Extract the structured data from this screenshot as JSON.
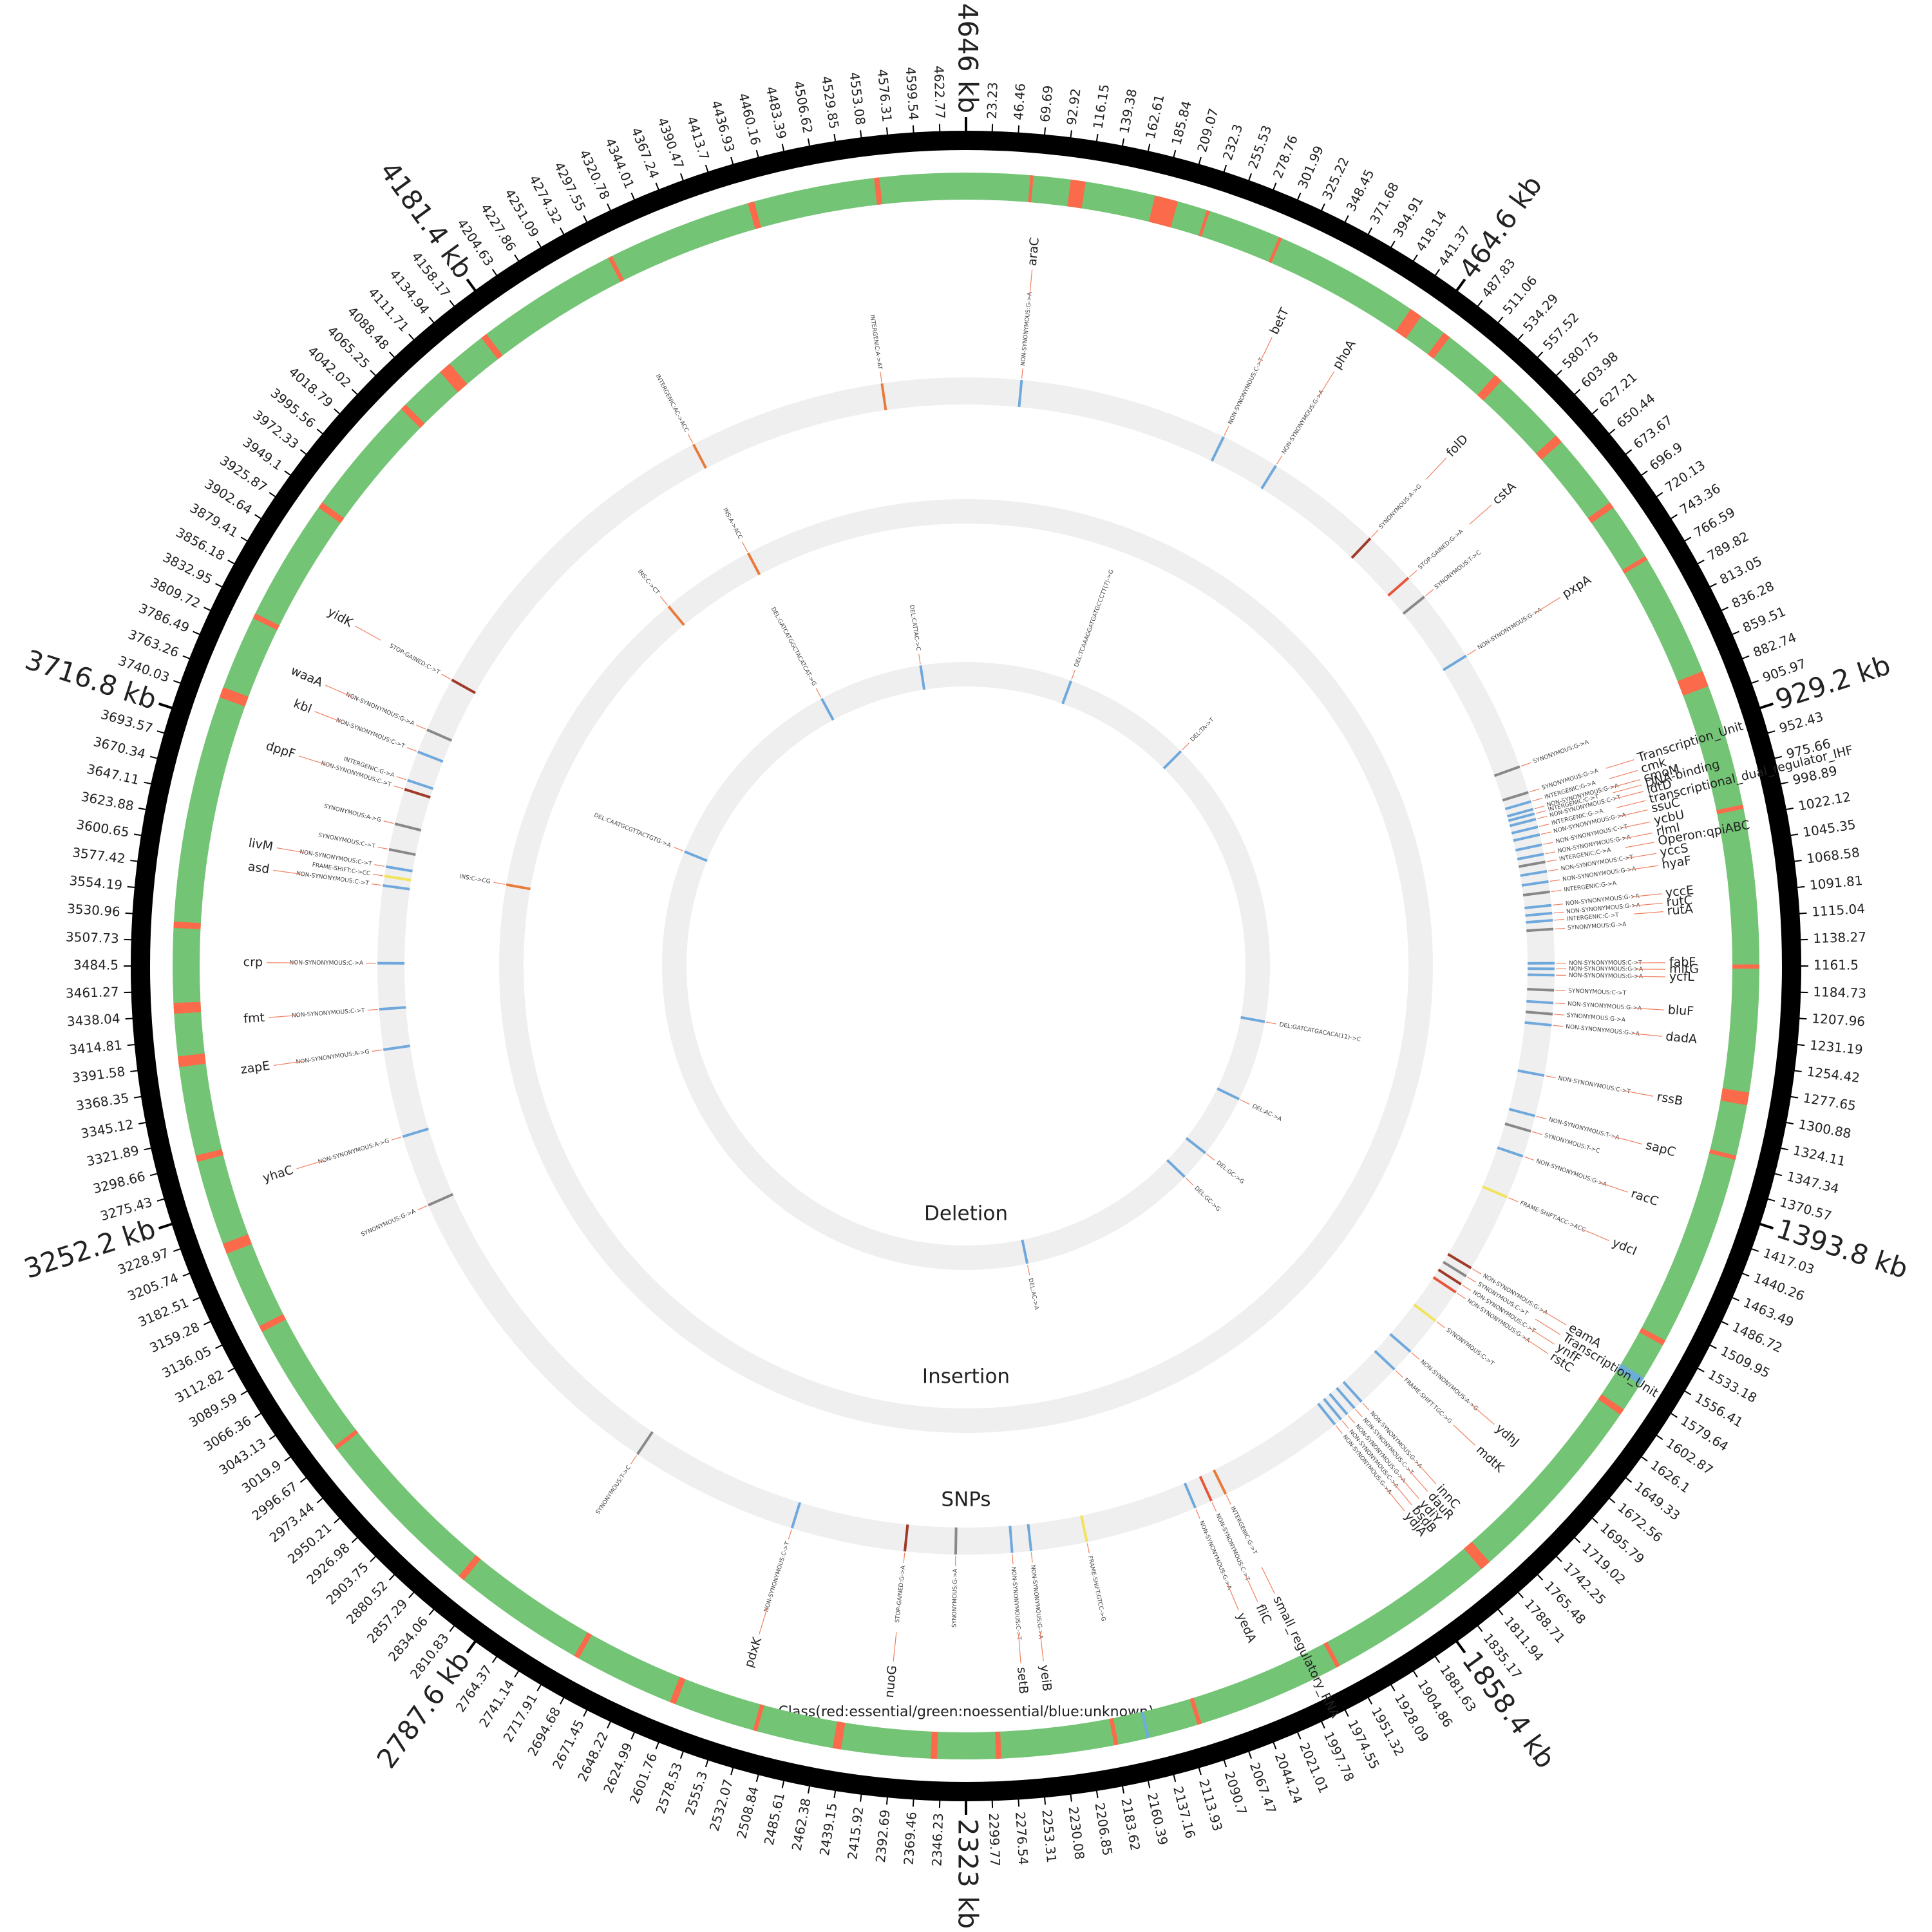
{
  "chart_data": {
    "type": "circos",
    "xlim": [
      0,
      4646
    ],
    "xticks": [
      23.23,
      46.46,
      69.69,
      92.92,
      116.15,
      139.38,
      162.61,
      185.84,
      209.07,
      232.3,
      255.53,
      278.76,
      301.99,
      325.22,
      348.45,
      371.68,
      394.91,
      418.14,
      441.37,
      {
        "value": 464.6,
        "label": "464.6 kb"
      },
      487.83,
      511.06,
      534.29,
      557.52,
      580.75,
      603.98,
      627.21,
      650.44,
      673.67,
      696.9,
      720.13,
      743.36,
      766.59,
      789.82,
      813.05,
      836.28,
      859.51,
      882.74,
      905.97,
      {
        "value": 929.2,
        "label": "929.2 kb"
      },
      952.43,
      975.66,
      998.89,
      1022.12,
      1045.35,
      1068.58,
      1091.81,
      1115.04,
      1138.27,
      1161.5,
      1184.73,
      1207.96,
      1231.19,
      1254.42,
      1277.65,
      1300.88,
      1324.11,
      1347.34,
      1370.57,
      {
        "value": 1393.8,
        "label": "1393.8 kb"
      },
      1417.03,
      1440.26,
      1463.49,
      1486.72,
      1509.95,
      1533.18,
      1556.41,
      1579.64,
      1602.87,
      1626.1,
      1649.33,
      1672.56,
      1695.79,
      1719.02,
      1742.25,
      1765.48,
      1788.71,
      1811.94,
      1835.17,
      {
        "value": 1858.4,
        "label": "1858.4 kb"
      },
      1881.63,
      1904.86,
      1928.09,
      1951.32,
      1974.55,
      1997.78,
      2021.01,
      2044.24,
      2067.47,
      2090.7,
      2113.93,
      2137.16,
      2160.39,
      2183.62,
      2206.85,
      2230.08,
      2253.31,
      2276.54,
      2299.77,
      {
        "value": 2323,
        "label": "2323 kb"
      },
      2346.23,
      2369.46,
      2392.69,
      2415.92,
      2439.15,
      2462.38,
      2485.61,
      2508.84,
      2532.07,
      2555.3,
      2578.53,
      2601.76,
      2624.99,
      2648.22,
      2671.45,
      2694.68,
      2717.91,
      2741.14,
      2764.37,
      {
        "value": 2787.6,
        "label": "2787.6 kb"
      },
      2810.83,
      2834.06,
      2857.29,
      2880.52,
      2903.75,
      2926.98,
      2950.21,
      2973.44,
      2996.67,
      3019.9,
      3043.13,
      3066.36,
      3089.59,
      3112.82,
      3136.05,
      3159.28,
      3182.51,
      3205.74,
      3228.97,
      {
        "value": 3252.2,
        "label": "3252.2 kb"
      },
      3275.43,
      3298.66,
      3321.89,
      3345.12,
      3368.35,
      3391.58,
      3414.81,
      3438.04,
      3461.27,
      3484.5,
      3507.73,
      3530.96,
      3554.19,
      3577.42,
      3600.65,
      3623.88,
      3647.11,
      3670.34,
      3693.57,
      {
        "value": 3716.8,
        "label": "3716.8 kb"
      },
      3740.03,
      3763.26,
      3786.49,
      3809.72,
      3832.95,
      3856.18,
      3879.41,
      3902.64,
      3925.87,
      3949.1,
      3972.33,
      3995.56,
      4018.79,
      4042.02,
      4065.25,
      4088.48,
      4111.71,
      4134.94,
      4158.17,
      {
        "value": 4181.4,
        "label": "4181.4 kb"
      },
      4204.63,
      4227.86,
      4251.09,
      4274.32,
      4297.55,
      4320.78,
      4344.01,
      4367.24,
      4390.47,
      4413.7,
      4436.93,
      4460.16,
      4483.39,
      4506.62,
      4529.85,
      4553.08,
      4576.31,
      4599.54,
      4622.77,
      {
        "value": 4646,
        "label": "4646 kb"
      }
    ],
    "colors": {
      "noessential": "#74c476",
      "essential": "#fb6a4a",
      "unknown": "#6baed6"
    },
    "class_legend": "Class(red:essential/green:noessential/blue:unknown)",
    "essential": [
      [
        60,
        63
      ],
      [
        98,
        112
      ],
      [
        178,
        200
      ],
      [
        228,
        231
      ],
      [
        300,
        303
      ],
      [
        440,
        452
      ],
      [
        478,
        485
      ],
      [
        540,
        548
      ],
      [
        620,
        628
      ],
      [
        700,
        706
      ],
      [
        760,
        764
      ],
      [
        880,
        895
      ],
      [
        1010,
        1014
      ],
      [
        1160,
        1164
      ],
      [
        1280,
        1292
      ],
      [
        1340,
        1344
      ],
      [
        1525,
        1530
      ],
      [
        1600,
        1606
      ],
      [
        1790,
        1800
      ],
      [
        1960,
        1964
      ],
      [
        2100,
        2104
      ],
      [
        2180,
        2184
      ],
      [
        2290,
        2295
      ],
      [
        2350,
        2356
      ],
      [
        2440,
        2448
      ],
      [
        2520,
        2524
      ],
      [
        2600,
        2606
      ],
      [
        2700,
        2705
      ],
      [
        2830,
        2836
      ],
      [
        3000,
        3004
      ],
      [
        3130,
        3136
      ],
      [
        3210,
        3220
      ],
      [
        3300,
        3306
      ],
      [
        3390,
        3400
      ],
      [
        3440,
        3450
      ],
      [
        3520,
        3526
      ],
      [
        3740,
        3750
      ],
      [
        3820,
        3825
      ],
      [
        3940,
        3946
      ],
      [
        4060,
        4066
      ],
      [
        4110,
        4122
      ],
      [
        4160,
        4166
      ],
      [
        4300,
        4304
      ],
      [
        4440,
        4446
      ],
      [
        4560,
        4565
      ]
    ],
    "unknown": [
      [
        1565,
        1572
      ],
      [
        2150,
        2153
      ]
    ],
    "snp_title": "SNPs",
    "insertion_title": "Insertion",
    "deletion_title": "Deletion",
    "snps": [
      {
        "pos": 70,
        "gene": "araC",
        "note": "NON-SYNONYMOUS:G->A",
        "color": "#6fa8dc"
      },
      {
        "pos": 335,
        "gene": "betT",
        "note": "NON-SYNONYMOUS:C->T",
        "color": "#6fa8dc"
      },
      {
        "pos": 410,
        "gene": "phoA",
        "note": "NON-SYNONYMOUS:G->A",
        "color": "#6fa8dc"
      },
      {
        "pos": 560,
        "gene": "folD",
        "note": "SYNONYMOUS:A->G",
        "color": "#a0392a"
      },
      {
        "pos": 629,
        "gene": "cstA",
        "note": "STOP-GAINED:G->A",
        "color": "#e8553a"
      },
      {
        "pos": 660,
        "note": "SYNONYMOUS:T->C",
        "color": "#888888"
      },
      {
        "pos": 751,
        "gene": "pxpA",
        "note": "NON-SYNONYMOUS:G->A",
        "color": "#6fa8dc"
      },
      {
        "pos": 906,
        "note": "SYNONYMOUS:G->A",
        "color": "#888888"
      },
      {
        "pos": 940,
        "gene": "Transcription_Unit",
        "note": "SYNONYMOUS:G->A",
        "color": "#888888"
      },
      {
        "pos": 952,
        "gene": "cmk",
        "note": "INTERGENIC:G->A",
        "color": "#6fa8dc"
      },
      {
        "pos": 962,
        "gene": "cmoM",
        "note": "NON-SYNONYMOUS:G->A",
        "color": "#6fa8dc"
      },
      {
        "pos": 968,
        "gene": "DNA-binding",
        "note": "INTERGENIC:C->T",
        "color": "#6fa8dc"
      },
      {
        "pos": 975,
        "gene": "ldtD",
        "note": "NON-SYNONYMOUS:C->T",
        "color": "#6fa8dc"
      },
      {
        "pos": 985,
        "gene": "transcriptional_dual_regulator_IHF",
        "note": "INTERGENIC:G->A",
        "color": "#6fa8dc"
      },
      {
        "pos": 995,
        "gene": "ssuC",
        "note": "NON-SYNONYMOUS:G->A",
        "color": "#6fa8dc"
      },
      {
        "pos": 1008,
        "gene": "ycbU",
        "note": "NON-SYNONYMOUS:C->T",
        "color": "#6fa8dc"
      },
      {
        "pos": 1020,
        "gene": "rlmI",
        "note": "NON-SYNONYMOUS:G->A",
        "color": "#6fa8dc"
      },
      {
        "pos": 1030,
        "gene": "Operon:qpiABC",
        "note": "INTERGENIC:C->A",
        "color": "#888888"
      },
      {
        "pos": 1042,
        "gene": "yccS",
        "note": "NON-SYNONYMOUS:C->T",
        "color": "#6fa8dc"
      },
      {
        "pos": 1055,
        "gene": "hyaF",
        "note": "NON-SYNONYMOUS:G->A",
        "color": "#6fa8dc"
      },
      {
        "pos": 1068,
        "note": "INTERGENIC:G->A",
        "color": "#888888"
      },
      {
        "pos": 1085,
        "gene": "yccE",
        "note": "NON-SYNONYMOUS:G->A",
        "color": "#6fa8dc"
      },
      {
        "pos": 1095,
        "gene": "rutC",
        "note": "NON-SYNONYMOUS:G->A",
        "color": "#6fa8dc"
      },
      {
        "pos": 1104,
        "gene": "rutA",
        "note": "INTERGENIC:C->T",
        "color": "#6fa8dc"
      },
      {
        "pos": 1115,
        "note": "SYNONYMOUS:G->A",
        "color": "#888888"
      },
      {
        "pos": 1158,
        "gene": "fabF",
        "note": "NON-SYNONYMOUS:C->T",
        "color": "#6fa8dc"
      },
      {
        "pos": 1165,
        "gene": "mltG",
        "note": "NON-SYNONYMOUS:G->A",
        "color": "#6fa8dc"
      },
      {
        "pos": 1173,
        "gene": "ycfL",
        "note": "NON-SYNONYMOUS:G->A",
        "color": "#6fa8dc"
      },
      {
        "pos": 1192,
        "note": "SYNONYMOUS:C->T",
        "color": "#888888"
      },
      {
        "pos": 1208,
        "gene": "bluF",
        "note": "NON-SYNONYMOUS:G->A",
        "color": "#6fa8dc"
      },
      {
        "pos": 1222,
        "note": "SYNONYMOUS:G->A",
        "color": "#888888"
      },
      {
        "pos": 1236,
        "gene": "dadA",
        "note": "NON-SYNONYMOUS:G->A",
        "color": "#6fa8dc"
      },
      {
        "pos": 1300,
        "gene": "rssB",
        "note": "NON-SYNONYMOUS:C->T",
        "color": "#6fa8dc"
      },
      {
        "pos": 1352,
        "gene": "sapC",
        "note": "NON-SYNONYMOUS:T->A",
        "color": "#6fa8dc"
      },
      {
        "pos": 1372,
        "note": "SYNONYMOUS:T->C",
        "color": "#888888"
      },
      {
        "pos": 1405,
        "gene": "racC",
        "note": "NON-SYNONYMOUS:G->A",
        "color": "#6fa8dc"
      },
      {
        "pos": 1460,
        "gene": "ydcI",
        "note": "FRAME-SHIFT:ACC->ACC",
        "color": "#f2e35b"
      },
      {
        "pos": 1560,
        "gene": "eamA",
        "note": "NON-SYNONYMOUS:G->A",
        "color": "#a0392a"
      },
      {
        "pos": 1572,
        "gene": "Transcription_Unit",
        "note": "SYNONYMOUS:C->T",
        "color": "#888888"
      },
      {
        "pos": 1584,
        "gene": "ynfF",
        "note": "NON-SYNONYMOUS:C->T",
        "color": "#a0392a"
      },
      {
        "pos": 1596,
        "gene": "rstC",
        "note": "NON-SYNONYMOUS:G->A",
        "color": "#e8553a"
      },
      {
        "pos": 1640,
        "note": "SYNONYMOUS:C->T",
        "color": "#f2e35b"
      },
      {
        "pos": 1690,
        "gene": "ydhJ",
        "note": "NON-SYNONYMOUS:A->G",
        "color": "#6fa8dc"
      },
      {
        "pos": 1720,
        "gene": "mdtK",
        "note": "FRAME-SHIFT:TGC->G",
        "color": "#6fa8dc"
      },
      {
        "pos": 1778,
        "gene": "innC",
        "note": "NON-SYNONYMOUS:G->A",
        "color": "#6fa8dc"
      },
      {
        "pos": 1790,
        "gene": "dauR",
        "note": "NON-SYNONYMOUS:C->T",
        "color": "#6fa8dc"
      },
      {
        "pos": 1802,
        "gene": "ydiY",
        "note": "NON-SYNONYMOUS:G->A",
        "color": "#6fa8dc"
      },
      {
        "pos": 1812,
        "gene": "bsdB",
        "note": "NON-SYNONYMOUS:C->A",
        "color": "#6fa8dc"
      },
      {
        "pos": 1822,
        "gene": "ydjA",
        "note": "NON-SYNONYMOUS:G->A",
        "color": "#6fa8dc"
      },
      {
        "pos": 1985,
        "gene": "small_regulatory_RNA",
        "note": "INTERGENIC:G->T",
        "color": "#e87a3a"
      },
      {
        "pos": 2005,
        "gene": "fliC",
        "note": "NON-SYNONYMOUS:C->T",
        "color": "#e8553a"
      },
      {
        "pos": 2027,
        "gene": "yedA",
        "note": "NON-SYNONYMOUS:G->A",
        "color": "#6fa8dc"
      },
      {
        "pos": 2170,
        "note": "FRAME-SHIFT:GTCC->G",
        "color": "#f2e35b"
      },
      {
        "pos": 2241,
        "gene": "yeiB",
        "note": "NON-SYNONYMOUS:G->A",
        "color": "#6fa8dc"
      },
      {
        "pos": 2265,
        "gene": "setB",
        "note": "NON-SYNONYMOUS:C->T",
        "color": "#6fa8dc"
      },
      {
        "pos": 2336,
        "note": "SYNONYMOUS:G->A",
        "color": "#888888"
      },
      {
        "pos": 2400,
        "gene": "nuoG",
        "note": "STOP-GAINED:G->A",
        "color": "#a0392a"
      },
      {
        "pos": 2545,
        "gene": "pdxK",
        "note": "NON-SYNONYMOUS:C->T",
        "color": "#6fa8dc"
      },
      {
        "pos": 2761,
        "note": "SYNONYMOUS:T->C",
        "color": "#888888"
      },
      {
        "pos": 3175,
        "note": "SYNONYMOUS:G->A",
        "color": "#888888"
      },
      {
        "pos": 3267,
        "gene": "yhaC",
        "note": "NON-SYNONYMOUS:A->G",
        "color": "#6fa8dc"
      },
      {
        "pos": 3379,
        "gene": "zapE",
        "note": "NON-SYNONYMOUS:A->G",
        "color": "#6fa8dc"
      },
      {
        "pos": 3430,
        "gene": "fmt",
        "note": "NON-SYNONYMOUS:C->T",
        "color": "#6fa8dc"
      },
      {
        "pos": 3488,
        "gene": "crp",
        "note": "NON-SYNONYMOUS:C->A",
        "color": "#6fa8dc"
      },
      {
        "pos": 3586,
        "gene": "asd",
        "note": "NON-SYNONYMOUS:C->T",
        "color": "#6fa8dc"
      },
      {
        "pos": 3598,
        "note": "FRAME-SHIFT:C->CC",
        "color": "#f2e35b"
      },
      {
        "pos": 3610,
        "gene": "livM",
        "note": "NON-SYNONYMOUS:C->T",
        "color": "#6fa8dc"
      },
      {
        "pos": 3632,
        "note": "SYNONYMOUS:C->T",
        "color": "#888888"
      },
      {
        "pos": 3665,
        "note": "SYNONYMOUS:A->G",
        "color": "#888888"
      },
      {
        "pos": 3710,
        "gene": "dppF",
        "note": "NON-SYNONYMOUS:C->T",
        "color": "#a0392a"
      },
      {
        "pos": 3722,
        "note": "INTERGENIC:G->A",
        "color": "#6fa8dc"
      },
      {
        "pos": 3760,
        "gene": "kbl",
        "note": "NON-SYNONYMOUS:C->T",
        "color": "#6fa8dc"
      },
      {
        "pos": 3790,
        "gene": "waaA",
        "note": "NON-SYNONYMOUS:G->A",
        "color": "#888888"
      },
      {
        "pos": 3860,
        "gene": "yidK",
        "note": "STOP-GAINED:C->T",
        "color": "#a0392a"
      },
      {
        "pos": 4290,
        "note": "INTERGENIC:AC->ACC",
        "color": "#e87a3a"
      },
      {
        "pos": 4540,
        "note": "INTERGENIC:A->AT",
        "color": "#e87a3a"
      }
    ],
    "insertions": [
      {
        "pos": 4287,
        "note": "INS:A->ACC",
        "color": "#e87a3a"
      },
      {
        "pos": 4135,
        "note": "INS:C->CT",
        "color": "#e87a3a"
      },
      {
        "pos": 3614,
        "note": "INS:C->CG",
        "color": "#e87a3a"
      }
    ],
    "deletions": [
      {
        "pos": 261,
        "note": "DEL:TCAAAGGATGATGCCCTT(7)->G",
        "color": "#6fa8dc"
      },
      {
        "pos": 581,
        "note": "DEL:TA->T",
        "color": "#6fa8dc"
      },
      {
        "pos": 1298,
        "note": "DEL:GATCATGACACA(11)->C",
        "color": "#6fa8dc"
      },
      {
        "pos": 1497,
        "note": "DEL:AC->A",
        "color": "#6fa8dc"
      },
      {
        "pos": 1652,
        "note": "DEL:GC->G",
        "color": "#6fa8dc"
      },
      {
        "pos": 1729,
        "note": "DEL:GC->G",
        "color": "#6fa8dc"
      },
      {
        "pos": 2173,
        "note": "DEL:AC->A",
        "color": "#6fa8dc"
      },
      {
        "pos": 3770,
        "note": "DEL:CAATGCGTTACTGTG->A",
        "color": "#6fa8dc"
      },
      {
        "pos": 4280,
        "note": "DEL:GATCATGGCTACATCAT->G",
        "color": "#6fa8dc"
      },
      {
        "pos": 4535,
        "note": "DEL:CATTAC->C",
        "color": "#6fa8dc"
      }
    ]
  }
}
